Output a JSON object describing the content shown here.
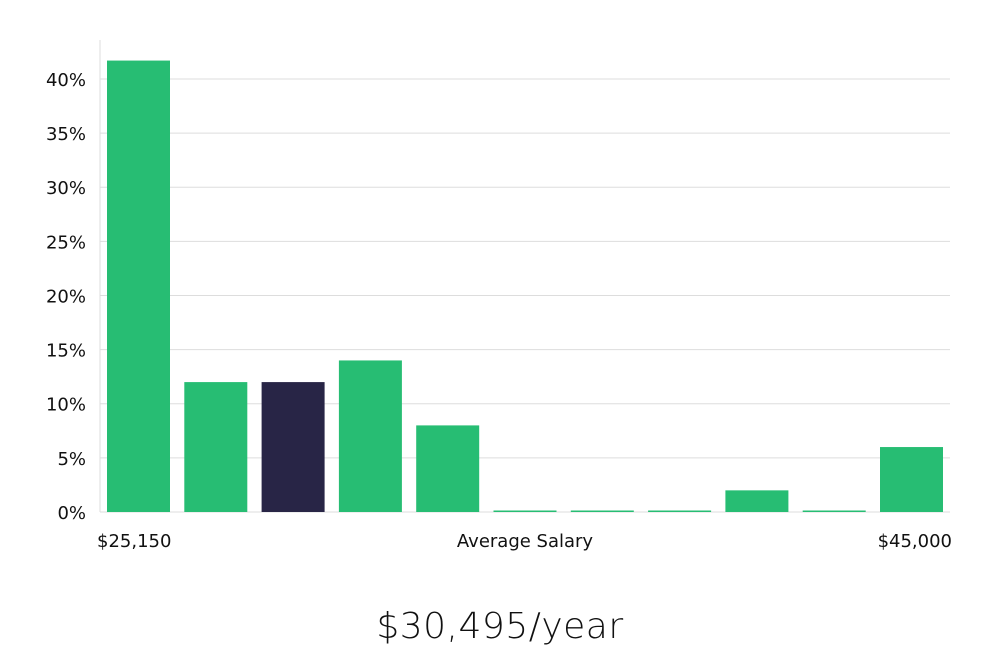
{
  "chart_data": {
    "type": "bar",
    "bar_count": 11,
    "values": [
      41.7,
      12,
      12,
      14,
      8,
      0,
      0,
      0,
      2,
      0,
      6
    ],
    "highlight_index": 2,
    "ylim": [
      0,
      43.6
    ],
    "yticks": [
      0,
      5,
      10,
      15,
      20,
      25,
      30,
      35,
      40
    ],
    "ytick_suffix": "%",
    "grid": true,
    "x_labels": {
      "left": "$25,150",
      "center": "Average Salary",
      "right": "$45,000"
    },
    "colors": {
      "bar": "#27bd73",
      "highlight": "#282546",
      "grid": "#dddddd",
      "axis": "#dddddd"
    }
  },
  "footer": {
    "average_salary": "$30,495/year"
  }
}
